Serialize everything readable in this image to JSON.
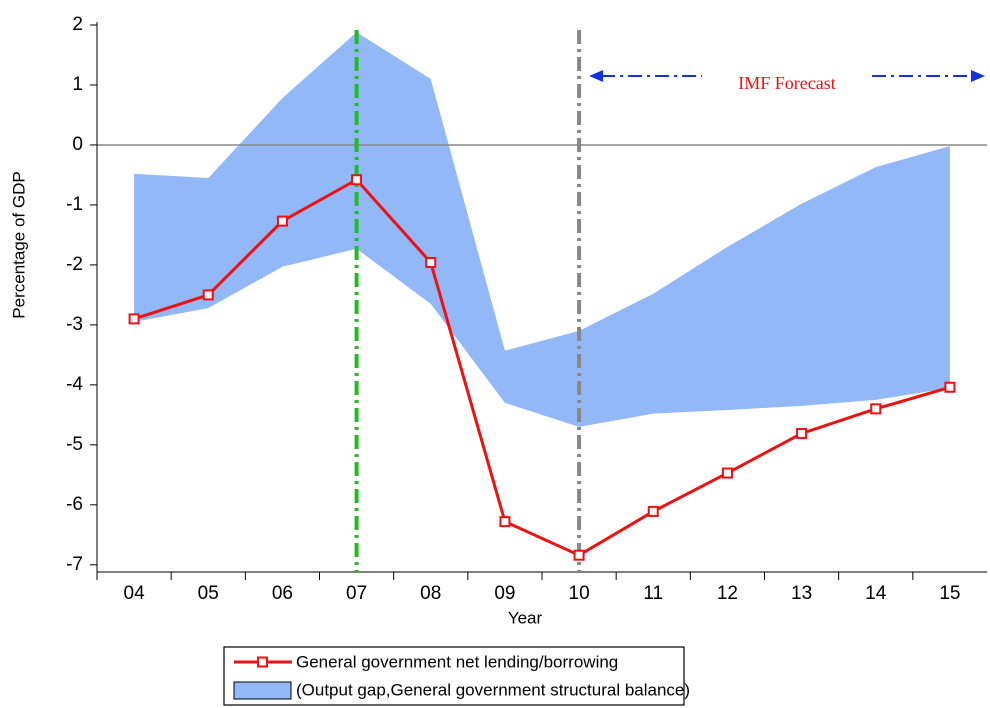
{
  "chart_data": {
    "type": "line",
    "x_label": "Year",
    "y_label": "Percentage of GDP",
    "categories": [
      "04",
      "05",
      "06",
      "07",
      "08",
      "09",
      "10",
      "11",
      "12",
      "13",
      "14",
      "15"
    ],
    "series": [
      {
        "name": "General government net lending/borrowing",
        "color": "#ee1111",
        "values": [
          -2.9,
          -2.5,
          -1.27,
          -0.58,
          -1.96,
          -6.28,
          -6.84,
          -6.11,
          -5.47,
          -4.81,
          -4.4,
          -4.04
        ]
      }
    ],
    "band": {
      "name": "(Output gap,General government structural balance)",
      "color": "#93b8f7",
      "high": [
        -0.48,
        -0.55,
        0.78,
        1.88,
        1.1,
        -3.43,
        -3.1,
        -2.48,
        -1.7,
        -0.98,
        -0.37,
        -0.02
      ],
      "low": [
        -2.95,
        -2.72,
        -2.03,
        -1.73,
        -2.65,
        -4.3,
        -4.7,
        -4.48,
        -4.42,
        -4.35,
        -4.25,
        -4.05
      ]
    },
    "ylim": [
      -7.12,
      2.05
    ],
    "yticks": [
      -7,
      -6,
      -5,
      -4,
      -3,
      -2,
      -1,
      0,
      1,
      2
    ],
    "hline": {
      "value": 0,
      "color": "#888888"
    },
    "vlines": [
      {
        "at": "07",
        "color": "#22bb22"
      },
      {
        "at": "10",
        "color": "#888888"
      }
    ],
    "annotation": {
      "text": "IMF Forecast",
      "color": "#ee1111",
      "arrow_color": "#1133dd",
      "from": "10",
      "y": 1.15
    }
  }
}
